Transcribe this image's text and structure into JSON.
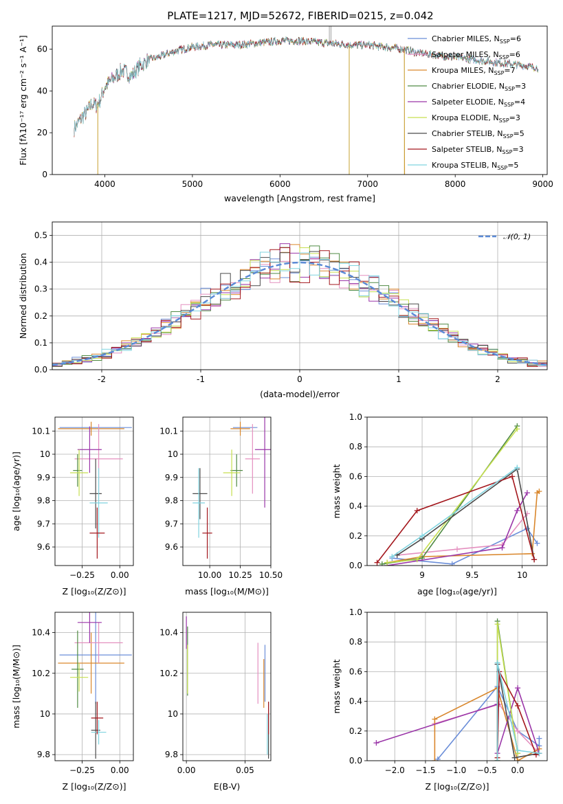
{
  "figure": {
    "title": "PLATE=1217, MJD=52672, FIBERID=0215, z=0.042"
  },
  "chart_data": [
    {
      "id": "spectrum",
      "type": "line",
      "title": "PLATE=1217, MJD=52672, FIBERID=0215, z=0.042",
      "xlabel": "wavelength [Angstrom, rest frame]",
      "ylabel": "Flux [fλ10⁻¹⁷ erg cm⁻² s⁻¹ A⁻¹]",
      "xlim": [
        3400,
        9050
      ],
      "ylim": [
        0,
        71
      ],
      "xticks": [
        4000,
        5000,
        6000,
        7000,
        8000,
        9000
      ],
      "yticks": [
        0,
        20,
        40,
        60
      ],
      "grid": false,
      "legend_position": "top-right",
      "continuum": {
        "x": [
          3650,
          3700,
          3750,
          3800,
          3850,
          3900,
          3950,
          4000,
          4100,
          4200,
          4300,
          4400,
          4500,
          4600,
          4800,
          5000,
          5200,
          5500,
          5800,
          6000,
          6200,
          6500,
          6800,
          7000,
          7200,
          7400,
          7600,
          7800,
          8000,
          8200,
          8400,
          8600,
          8800,
          8950
        ],
        "y": [
          22,
          25,
          28,
          30,
          34,
          33,
          36,
          42,
          46,
          50,
          47,
          52,
          55,
          56,
          59,
          61,
          62,
          62,
          63,
          64,
          64,
          63,
          62,
          62,
          61,
          60,
          58,
          57,
          56,
          55,
          54,
          53,
          52,
          51
        ]
      },
      "series": [
        {
          "name": "Chabrier MILES, Nₛₛₚ=6",
          "name_main": "Chabrier MILES, N",
          "name_sub": "SSP",
          "name_tail": "=6",
          "color": "#6a8dd8"
        },
        {
          "name": "Salpeter MILES, Nₛₛₚ=6",
          "name_main": "Salpeter MILES, N",
          "name_sub": "SSP",
          "name_tail": "=6",
          "color": "#e48fbf"
        },
        {
          "name": "Kroupa MILES, Nₛₛₚ=7",
          "name_main": "Kroupa MILES, N",
          "name_sub": "SSP",
          "name_tail": "=7",
          "color": "#d9862b"
        },
        {
          "name": "Chabrier ELODIE, Nₛₛₚ=3",
          "name_main": "Chabrier ELODIE, N",
          "name_sub": "SSP",
          "name_tail": "=3",
          "color": "#4f8a43"
        },
        {
          "name": "Salpeter ELODIE, Nₛₛₚ=4",
          "name_main": "Salpeter ELODIE, N",
          "name_sub": "SSP",
          "name_tail": "=4",
          "color": "#9a35a8"
        },
        {
          "name": "Kroupa ELODIE, Nₛₛₚ=3",
          "name_main": "Kroupa ELODIE, N",
          "name_sub": "SSP",
          "name_tail": "=3",
          "color": "#c6df4f"
        },
        {
          "name": "Chabrier STELIB, Nₛₛₚ=5",
          "name_main": "Chabrier STELIB, N",
          "name_sub": "SSP",
          "name_tail": "=5",
          "color": "#4a4a4a"
        },
        {
          "name": "Salpeter STELIB, Nₛₛₚ=3",
          "name_main": "Salpeter STELIB, N",
          "name_sub": "SSP",
          "name_tail": "=3",
          "color": "#a3161c"
        },
        {
          "name": "Kroupa STELIB, Nₛₛₚ=5",
          "name_main": "Kroupa STELIB, N",
          "name_sub": "SSP",
          "name_tail": "=5",
          "color": "#7fd3df"
        }
      ],
      "drops": [
        {
          "x": 3920,
          "y": 0
        },
        {
          "x": 6790,
          "y": 0
        },
        {
          "x": 7420,
          "y": 0
        }
      ],
      "spikes": [
        {
          "x": 6563,
          "y": 71
        },
        {
          "x": 6583,
          "y": 71
        }
      ]
    },
    {
      "id": "residuals",
      "type": "histogram",
      "xlabel": "(data-model)/error",
      "ylabel": "Normed distribution",
      "xlim": [
        -2.5,
        2.5
      ],
      "ylim": [
        0,
        0.55
      ],
      "xticks": [
        -2,
        -1,
        0,
        1,
        2
      ],
      "yticks": [
        0.0,
        0.1,
        0.2,
        0.3,
        0.4,
        0.5
      ],
      "grid": true,
      "legend_position": "top-right",
      "reference_curve": {
        "name": "𝒩(0, 1)",
        "mean": 0,
        "sigma": 1,
        "color": "#5b8ad6",
        "style": "dashed"
      },
      "bin_width": 0.1
    },
    {
      "id": "age_vs_Z",
      "type": "scatter",
      "xlabel": "Z [log₁₀(Z/Z⊙)]",
      "ylabel": "age  [log₁₀(age/yr)]",
      "xlim": [
        -0.43,
        0.09
      ],
      "ylim": [
        9.52,
        10.16
      ],
      "xticks": [
        -0.25,
        0.0
      ],
      "xtick_labels": [
        "−0.25",
        "0.00"
      ],
      "yticks": [
        9.6,
        9.7,
        9.8,
        9.9,
        10.0,
        10.1
      ],
      "grid": true,
      "points": [
        {
          "color": "#6a8dd8",
          "x": -0.16,
          "xerr": 0.24,
          "y": 10.115,
          "yerr": 0.0
        },
        {
          "color": "#d9862b",
          "x": -0.19,
          "xerr": 0.22,
          "y": 10.11,
          "yerr": 0.03
        },
        {
          "color": "#e48fbf",
          "x": -0.14,
          "xerr": 0.16,
          "y": 9.98,
          "yerr": 0.15
        },
        {
          "color": "#9a35a8",
          "x": -0.2,
          "xerr": 0.08,
          "y": 10.02,
          "yerr": 0.1
        },
        {
          "color": "#4f8a43",
          "x": -0.28,
          "xerr": 0.03,
          "y": 9.93,
          "yerr": 0.07
        },
        {
          "color": "#c6df4f",
          "x": -0.27,
          "xerr": 0.06,
          "y": 9.92,
          "yerr": 0.1
        },
        {
          "color": "#4a4a4a",
          "x": -0.16,
          "xerr": 0.04,
          "y": 9.83,
          "yerr": 0.15
        },
        {
          "color": "#7fd3df",
          "x": -0.14,
          "xerr": 0.06,
          "y": 9.79,
          "yerr": 0.15
        },
        {
          "color": "#a3161c",
          "x": -0.15,
          "xerr": 0.05,
          "y": 9.66,
          "yerr": 0.11
        }
      ]
    },
    {
      "id": "age_vs_mass",
      "type": "scatter",
      "xlabel": "mass [log₁₀(M/M⊙)]",
      "xlim": [
        9.78,
        10.5
      ],
      "ylim": [
        9.52,
        10.16
      ],
      "xticks": [
        10.0,
        10.25,
        10.5
      ],
      "xtick_labels": [
        "10.00",
        "10.25",
        "10.50"
      ],
      "yticks": [
        9.6,
        9.7,
        9.8,
        9.9,
        10.0,
        10.1
      ],
      "grid": true,
      "points": [
        {
          "color": "#6a8dd8",
          "x": 10.29,
          "xerr": 0.1,
          "y": 10.115,
          "yerr": 0.0
        },
        {
          "color": "#d9862b",
          "x": 10.25,
          "xerr": 0.08,
          "y": 10.11,
          "yerr": 0.03
        },
        {
          "color": "#e48fbf",
          "x": 10.35,
          "xerr": 0.06,
          "y": 9.98,
          "yerr": 0.15
        },
        {
          "color": "#9a35a8",
          "x": 10.45,
          "xerr": 0.08,
          "y": 10.02,
          "yerr": 0.25
        },
        {
          "color": "#4f8a43",
          "x": 10.22,
          "xerr": 0.05,
          "y": 9.93,
          "yerr": 0.07
        },
        {
          "color": "#c6df4f",
          "x": 10.18,
          "xerr": 0.07,
          "y": 9.92,
          "yerr": 0.1
        },
        {
          "color": "#4a4a4a",
          "x": 9.92,
          "xerr": 0.06,
          "y": 9.83,
          "yerr": 0.11
        },
        {
          "color": "#7fd3df",
          "x": 9.91,
          "xerr": 0.05,
          "y": 9.79,
          "yerr": 0.15
        },
        {
          "color": "#a3161c",
          "x": 9.98,
          "xerr": 0.04,
          "y": 9.66,
          "yerr": 0.11
        }
      ]
    },
    {
      "id": "weights_vs_age",
      "type": "line",
      "xlabel": "age  [log₁₀(age/yr)]",
      "ylabel": "mass weight",
      "xlim": [
        8.45,
        10.25
      ],
      "ylim": [
        0,
        1.0
      ],
      "xticks": [
        9.0,
        9.5,
        10.0
      ],
      "yticks": [
        0.0,
        0.2,
        0.4,
        0.6,
        0.8,
        1.0
      ],
      "grid": true,
      "series": [
        {
          "color": "#6a8dd8",
          "x": [
            8.7,
            9.3,
            10.05,
            10.15
          ],
          "y": [
            0.05,
            0.01,
            0.25,
            0.15
          ]
        },
        {
          "color": "#e48fbf",
          "x": [
            8.75,
            9.35,
            9.8,
            10.05
          ],
          "y": [
            0.07,
            0.11,
            0.14,
            0.35
          ]
        },
        {
          "color": "#d9862b",
          "x": [
            8.65,
            9.0,
            10.1,
            10.15,
            10.17
          ],
          "y": [
            0.02,
            0.06,
            0.08,
            0.49,
            0.5
          ]
        },
        {
          "color": "#4f8a43",
          "x": [
            8.6,
            9.0,
            9.95
          ],
          "y": [
            0.01,
            0.05,
            0.94
          ]
        },
        {
          "color": "#9a35a8",
          "x": [
            8.65,
            9.8,
            9.95,
            10.05
          ],
          "y": [
            0.0,
            0.12,
            0.37,
            0.49
          ]
        },
        {
          "color": "#c6df4f",
          "x": [
            8.65,
            8.95,
            9.95
          ],
          "y": [
            0.02,
            0.04,
            0.92
          ]
        },
        {
          "color": "#4a4a4a",
          "x": [
            8.75,
            9.0,
            9.95,
            10.12
          ],
          "y": [
            0.07,
            0.18,
            0.65,
            0.04
          ]
        },
        {
          "color": "#a3161c",
          "x": [
            8.55,
            8.95,
            9.9,
            10.12
          ],
          "y": [
            0.02,
            0.37,
            0.6,
            0.04
          ]
        },
        {
          "color": "#7fd3df",
          "x": [
            8.7,
            9.0,
            9.95
          ],
          "y": [
            0.06,
            0.2,
            0.66
          ]
        }
      ]
    },
    {
      "id": "mass_vs_Z",
      "type": "scatter",
      "xlabel": "Z [log₁₀(Z/Z⊙)]",
      "ylabel": "mass [log₁₀(M/M⊙)]",
      "xlim": [
        -0.43,
        0.09
      ],
      "ylim": [
        9.77,
        10.5
      ],
      "xticks": [
        -0.25,
        0.0
      ],
      "xtick_labels": [
        "−0.25",
        "0.00"
      ],
      "yticks": [
        9.8,
        10.0,
        10.2,
        10.4
      ],
      "grid": true,
      "points": [
        {
          "color": "#6a8dd8",
          "x": -0.16,
          "xerr": 0.24,
          "y": 10.29,
          "yerr": 0.24
        },
        {
          "color": "#d9862b",
          "x": -0.19,
          "xerr": 0.22,
          "y": 10.25,
          "yerr": 0.15
        },
        {
          "color": "#e48fbf",
          "x": -0.14,
          "xerr": 0.16,
          "y": 10.35,
          "yerr": 0.1
        },
        {
          "color": "#9a35a8",
          "x": -0.2,
          "xerr": 0.08,
          "y": 10.45,
          "yerr": 0.1
        },
        {
          "color": "#4f8a43",
          "x": -0.28,
          "xerr": 0.04,
          "y": 10.22,
          "yerr": 0.19
        },
        {
          "color": "#c6df4f",
          "x": -0.27,
          "xerr": 0.06,
          "y": 10.18,
          "yerr": 0.07
        },
        {
          "color": "#4a4a4a",
          "x": -0.16,
          "xerr": 0.03,
          "y": 9.92,
          "yerr": 0.14
        },
        {
          "color": "#7fd3df",
          "x": -0.14,
          "xerr": 0.05,
          "y": 9.91,
          "yerr": 0.06
        },
        {
          "color": "#a3161c",
          "x": -0.15,
          "xerr": 0.04,
          "y": 9.98,
          "yerr": 0.08
        }
      ]
    },
    {
      "id": "mass_vs_ebv",
      "type": "scatter",
      "xlabel": "E(B-V)",
      "xlim": [
        -0.003,
        0.072
      ],
      "ylim": [
        9.77,
        10.5
      ],
      "xticks": [
        0.0,
        0.05
      ],
      "xtick_labels": [
        "0.00",
        "0.05"
      ],
      "yticks": [
        9.8,
        10.0,
        10.2,
        10.4
      ],
      "grid": true,
      "points": [
        {
          "color": "#6a8dd8",
          "x": 0.067,
          "xerr": 0,
          "y": 10.2,
          "yerr": 0.14
        },
        {
          "color": "#e48fbf",
          "x": 0.061,
          "xerr": 0,
          "y": 10.2,
          "yerr": 0.15
        },
        {
          "color": "#d9862b",
          "x": 0.066,
          "xerr": 0,
          "y": 10.15,
          "yerr": 0.12
        },
        {
          "color": "#4f8a43",
          "x": 0.001,
          "xerr": 0,
          "y": 10.26,
          "yerr": 0.17
        },
        {
          "color": "#9a35a8",
          "x": 0.0,
          "xerr": 0,
          "y": 10.4,
          "yerr": 0.08
        },
        {
          "color": "#c6df4f",
          "x": 0.001,
          "xerr": 0,
          "y": 10.22,
          "yerr": 0.12
        },
        {
          "color": "#4a4a4a",
          "x": 0.07,
          "xerr": 0,
          "y": 9.92,
          "yerr": 0.14
        },
        {
          "color": "#a3161c",
          "x": 0.07,
          "xerr": 0,
          "y": 9.98,
          "yerr": 0.08
        },
        {
          "color": "#7fd3df",
          "x": 0.069,
          "xerr": 0,
          "y": 9.9,
          "yerr": 0.1
        }
      ]
    },
    {
      "id": "weights_vs_Z",
      "type": "line",
      "xlabel": "Z [log₁₀(Z/Z⊙)]",
      "ylabel": "mass weight",
      "xlim": [
        -2.45,
        0.48
      ],
      "ylim": [
        0,
        1.0
      ],
      "xticks": [
        -2.0,
        -1.5,
        -1.0,
        -0.5,
        0.0
      ],
      "xtick_labels": [
        "−2.0",
        "−1.5",
        "−1.0",
        "−0.5",
        "0.0"
      ],
      "yticks": [
        0.0,
        0.2,
        0.4,
        0.6,
        0.8,
        1.0
      ],
      "grid": true,
      "series": [
        {
          "color": "#6a8dd8",
          "x": [
            -1.3,
            -0.33,
            0.0,
            0.35,
            0.35
          ],
          "y": [
            0.01,
            0.5,
            0.2,
            0.1,
            0.15
          ]
        },
        {
          "color": "#e48fbf",
          "x": [
            -1.35,
            -0.3,
            0.0,
            0.35
          ],
          "y": [
            0.25,
            0.38,
            0.2,
            0.05
          ]
        },
        {
          "color": "#d9862b",
          "x": [
            -1.35,
            -1.35,
            -0.33,
            0.0,
            0.35
          ],
          "y": [
            0.0,
            0.28,
            0.49,
            0.0,
            0.08
          ]
        },
        {
          "color": "#4f8a43",
          "x": [
            -0.33,
            -0.33,
            0.0
          ],
          "y": [
            0.0,
            0.94,
            0.05
          ]
        },
        {
          "color": "#9a35a8",
          "x": [
            -2.3,
            -0.33,
            -0.33,
            0.0,
            0.35
          ],
          "y": [
            0.12,
            0.38,
            0.05,
            0.49,
            0.05
          ]
        },
        {
          "color": "#c6df4f",
          "x": [
            -0.33,
            -0.33,
            0.0
          ],
          "y": [
            0.0,
            0.92,
            0.05
          ]
        },
        {
          "color": "#4a4a4a",
          "x": [
            -0.33,
            -0.33,
            -0.05,
            0.35
          ],
          "y": [
            0.0,
            0.65,
            0.02,
            0.05
          ]
        },
        {
          "color": "#a3161c",
          "x": [
            -0.33,
            -0.3,
            0.0,
            0.3
          ],
          "y": [
            0.02,
            0.6,
            0.37,
            0.04
          ]
        },
        {
          "color": "#7fd3df",
          "x": [
            -0.33,
            -0.33,
            0.0,
            0.35
          ],
          "y": [
            0.0,
            0.66,
            0.07,
            0.05
          ]
        }
      ]
    }
  ]
}
